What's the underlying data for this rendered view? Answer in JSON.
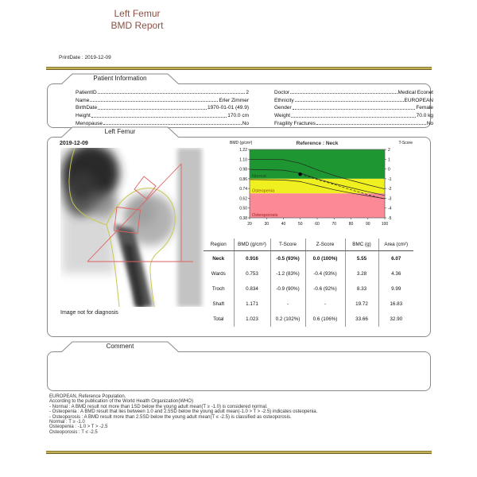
{
  "header": {
    "title_line1": "Left Femur",
    "title_line2": "BMD Report",
    "print_date": "PrintDate : 2019-12-09"
  },
  "sections": {
    "patient": "Patient Information",
    "femur": "Left Femur",
    "comment": "Comment"
  },
  "patient": {
    "left": [
      {
        "label": "PatientID",
        "value": "2"
      },
      {
        "label": "Name",
        "value": "Erler Zimmer"
      },
      {
        "label": "BirthDate",
        "value": "1970-01-01 (49.9)"
      },
      {
        "label": "Height",
        "value": "170.0 cm"
      },
      {
        "label": "Menopause",
        "value": "No"
      }
    ],
    "right": [
      {
        "label": "Doctor",
        "value": "Medical Econet"
      },
      {
        "label": "Ethnicity",
        "value": "EUROPEAN"
      },
      {
        "label": "Gender",
        "value": "Female"
      },
      {
        "label": "Weight",
        "value": "70.0 kg"
      },
      {
        "label": "Fragility Fractures",
        "value": "No"
      }
    ]
  },
  "scan": {
    "date": "2019-12-09",
    "disclaimer": "Image not for diagnosis",
    "contour_color": "#c8c84f",
    "roi_color": "#e06060"
  },
  "chart_data": {
    "type": "line",
    "title": "Reference : Neck",
    "ylabel": "BMD (g/cm²)",
    "y2label": "T-Score",
    "xlabel": "Age",
    "xlim": [
      20,
      100
    ],
    "ylim": [
      0.38,
      1.22
    ],
    "y2lim": [
      -5,
      2
    ],
    "xticks": [
      20,
      30,
      40,
      50,
      60,
      70,
      80,
      90,
      100
    ],
    "yticks": [
      1.22,
      1.1,
      0.98,
      0.86,
      0.74,
      0.62,
      0.5,
      0.38
    ],
    "y2ticks": [
      2,
      1,
      0,
      -1,
      -2,
      -3,
      -4,
      -5
    ],
    "zones": [
      {
        "label": "Normal",
        "bmd_range": [
          0.86,
          1.22
        ],
        "color": "#1e9632",
        "label_color": "#1d4d1d"
      },
      {
        "label": "Osteopenia",
        "bmd_range": [
          0.68,
          0.86
        ],
        "color": "#f0ef1f",
        "label_color": "#8a5a00"
      },
      {
        "label": "Osteoporosis",
        "bmd_range": [
          0.38,
          0.68
        ],
        "color": "#fb8a96",
        "label_color": "#a02020"
      }
    ],
    "series": [
      {
        "name": "reference-plus-1sd",
        "style": "solid",
        "points": [
          [
            20,
            1.1
          ],
          [
            40,
            1.095
          ],
          [
            50,
            1.05
          ],
          [
            60,
            0.97
          ],
          [
            70,
            0.9
          ],
          [
            80,
            0.84
          ],
          [
            90,
            0.785
          ],
          [
            100,
            0.735
          ]
        ]
      },
      {
        "name": "reference-mean",
        "style": "solid",
        "points": [
          [
            20,
            0.975
          ],
          [
            40,
            0.965
          ],
          [
            50,
            0.93
          ],
          [
            60,
            0.86
          ],
          [
            70,
            0.8
          ],
          [
            80,
            0.75
          ],
          [
            90,
            0.7
          ],
          [
            100,
            0.655
          ]
        ]
      },
      {
        "name": "reference-minus-1sd",
        "style": "solid",
        "points": [
          [
            20,
            0.85
          ],
          [
            40,
            0.845
          ],
          [
            50,
            0.825
          ],
          [
            60,
            0.775
          ],
          [
            70,
            0.725
          ],
          [
            80,
            0.685
          ],
          [
            90,
            0.65
          ],
          [
            100,
            0.615
          ]
        ]
      },
      {
        "name": "patient-projection",
        "style": "dashed",
        "points": [
          [
            50,
            0.916
          ],
          [
            60,
            0.85
          ],
          [
            70,
            0.79
          ],
          [
            80,
            0.725
          ],
          [
            90,
            0.665
          ],
          [
            100,
            0.61
          ]
        ]
      }
    ],
    "patient_point": {
      "x": 49.9,
      "y": 0.916
    }
  },
  "results": {
    "headers": [
      "Region",
      "BMD (g/cm²)",
      "T-Score",
      "Z-Score",
      "BMC (g)",
      "Area (cm²)"
    ],
    "rows": [
      {
        "bold": true,
        "cells": [
          "Neck",
          "0.916",
          "-0.5 (93%)",
          "0.0 (100%)",
          "5.55",
          "6.07"
        ]
      },
      {
        "bold": false,
        "cells": [
          "Wards",
          "0.753",
          "-1.2 (83%)",
          "-0.4 (93%)",
          "3.28",
          "4.36"
        ]
      },
      {
        "bold": false,
        "cells": [
          "Troch",
          "0.834",
          "-0.9 (90%)",
          "-0.6 (92%)",
          "8.33",
          "9.99"
        ]
      },
      {
        "bold": false,
        "cells": [
          "Shaft",
          "1.171",
          "-",
          "-",
          "19.72",
          "16.83"
        ]
      },
      {
        "bold": false,
        "cells": [
          "Total",
          "1.023",
          "0.2 (102%)",
          "0.6 (106%)",
          "33.66",
          "32.90"
        ]
      }
    ]
  },
  "footer": {
    "lines": [
      "EUROPEAN, Reference Population.",
      "According to the publication of the World Health Organization(WHO)",
      "- Normal : A BMD result not more than 1SD below the young adult mean(T ≥ -1.0) is considered normal.",
      "- Osteopenia : A BMD result that lies between 1.0 and 2.5SD below the young adult mean(-1.0 > T > -2.5) indicates osteopenia.",
      "- Osteoporosis : A BMD result more than 2.5SD below the young adult mean(T ≤ -2.5) is classified as osteoporosis.",
      "Normal : T ≥ -1.0",
      "Osteopenia : -1.0 > T > -2.5",
      "Osteoporosis : T ≤ -2.5"
    ]
  },
  "colors": {
    "accent_gold": "#bfae55",
    "title_brown": "#8d4f44",
    "zone_green": "#1e9632",
    "zone_yellow": "#f0ef1f",
    "zone_pink": "#fb8a96"
  }
}
